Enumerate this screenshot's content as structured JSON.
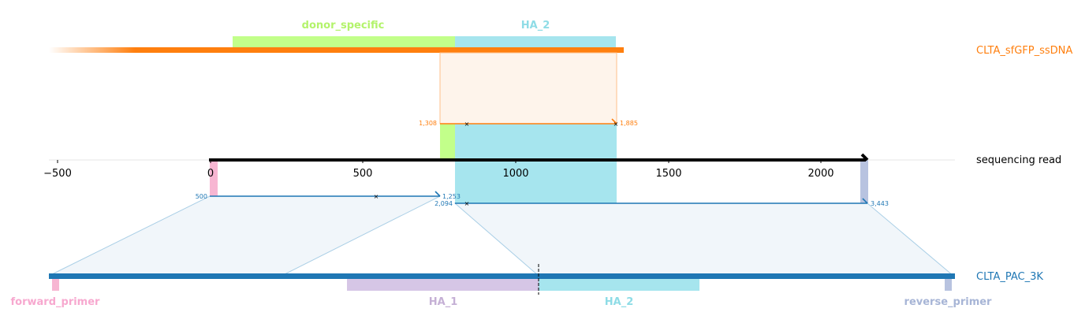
{
  "reference_top": {
    "name": "CLTA_sfGFP_ssDNA",
    "color": "#ff7f0e",
    "features": [
      {
        "label": "donor_specific",
        "color": "#c2ff8a"
      },
      {
        "label": "HA_2",
        "color": "#a6e5ee"
      }
    ]
  },
  "read": {
    "name": "sequencing read",
    "color": "#000000",
    "axis_ticks": [
      "−500",
      "0",
      "500",
      "1000",
      "1500",
      "2000"
    ],
    "alignments": [
      {
        "start": "500",
        "end": "1,253",
        "color": "#1f77b4"
      },
      {
        "start": "2,094",
        "end": "3,443",
        "color": "#1f77b4"
      },
      {
        "start": "1,308",
        "end": "1,885",
        "color": "#ff7f0e"
      }
    ]
  },
  "reference_bottom": {
    "name": "CLTA_PAC_3K",
    "color": "#1f77b4",
    "features": [
      {
        "label": "forward_primer",
        "color": "#f7b6d2"
      },
      {
        "label": "HA_1",
        "color": "#c5b0d5"
      },
      {
        "label": "HA_2",
        "color": "#9edae5"
      },
      {
        "label": "reverse_primer",
        "color": "#a7b5d6"
      }
    ]
  }
}
